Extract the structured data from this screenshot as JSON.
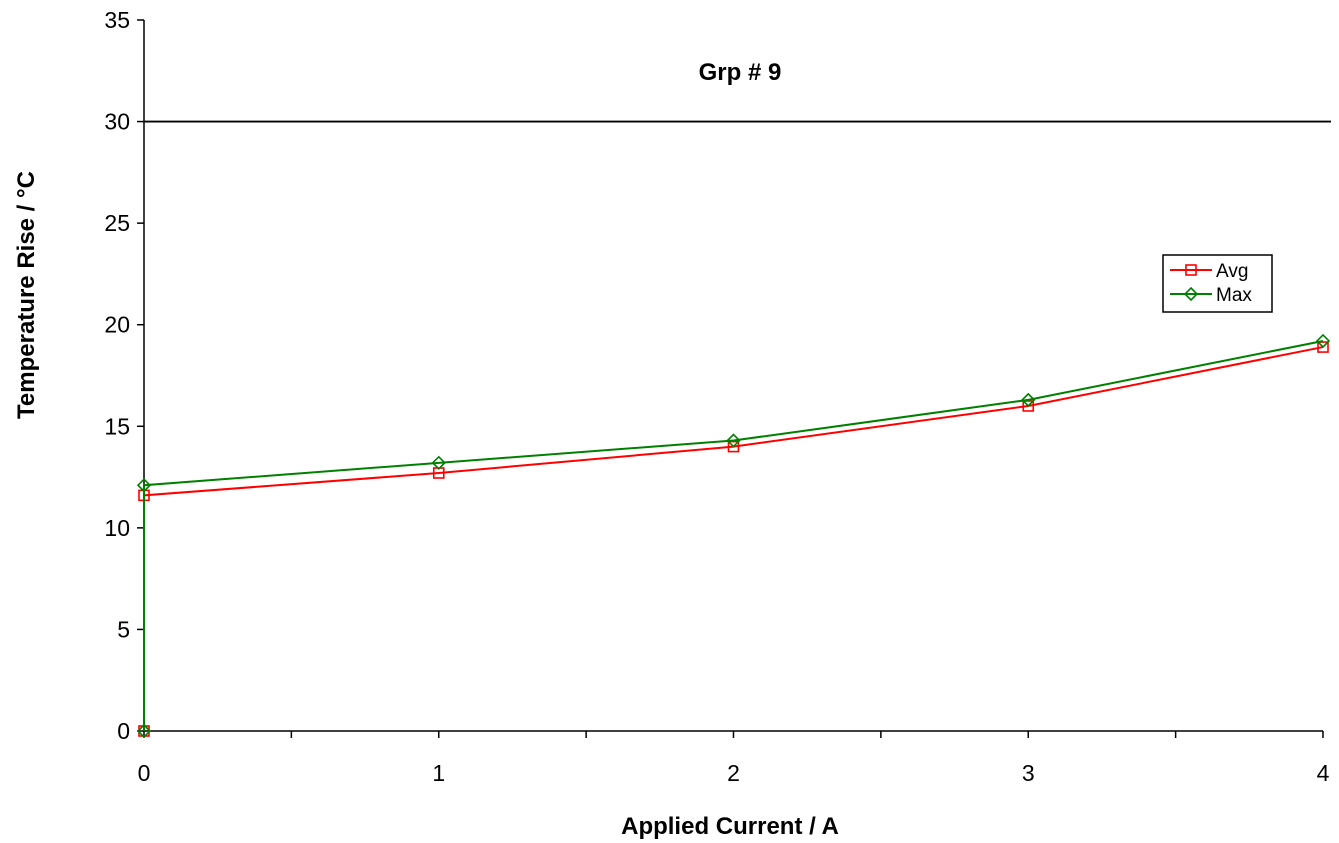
{
  "chart_data": {
    "type": "line",
    "title": "Grp # 9",
    "xlabel": "Applied Current / A",
    "ylabel": "Temperature Rise / °C",
    "xlim": [
      0,
      4
    ],
    "ylim": [
      0,
      35
    ],
    "x_ticks": [
      "0",
      "1",
      "2",
      "3",
      "4"
    ],
    "y_ticks": [
      "0",
      "5",
      "10",
      "15",
      "20",
      "25",
      "30",
      "35"
    ],
    "grid": false,
    "reference_line": {
      "y": 30,
      "color": "#000000"
    },
    "legend_position": "right",
    "series": [
      {
        "name": "Avg",
        "color": "#ff0000",
        "marker": "square",
        "points": [
          [
            0,
            0
          ],
          [
            0,
            11.6
          ],
          [
            1,
            12.7
          ],
          [
            2,
            14.0
          ],
          [
            3,
            16.0
          ],
          [
            4,
            18.9
          ]
        ]
      },
      {
        "name": "Max",
        "color": "#008000",
        "marker": "diamond",
        "points": [
          [
            0,
            0
          ],
          [
            0,
            12.1
          ],
          [
            1,
            13.2
          ],
          [
            2,
            14.3
          ],
          [
            3,
            16.3
          ],
          [
            4,
            19.2
          ]
        ]
      }
    ]
  }
}
